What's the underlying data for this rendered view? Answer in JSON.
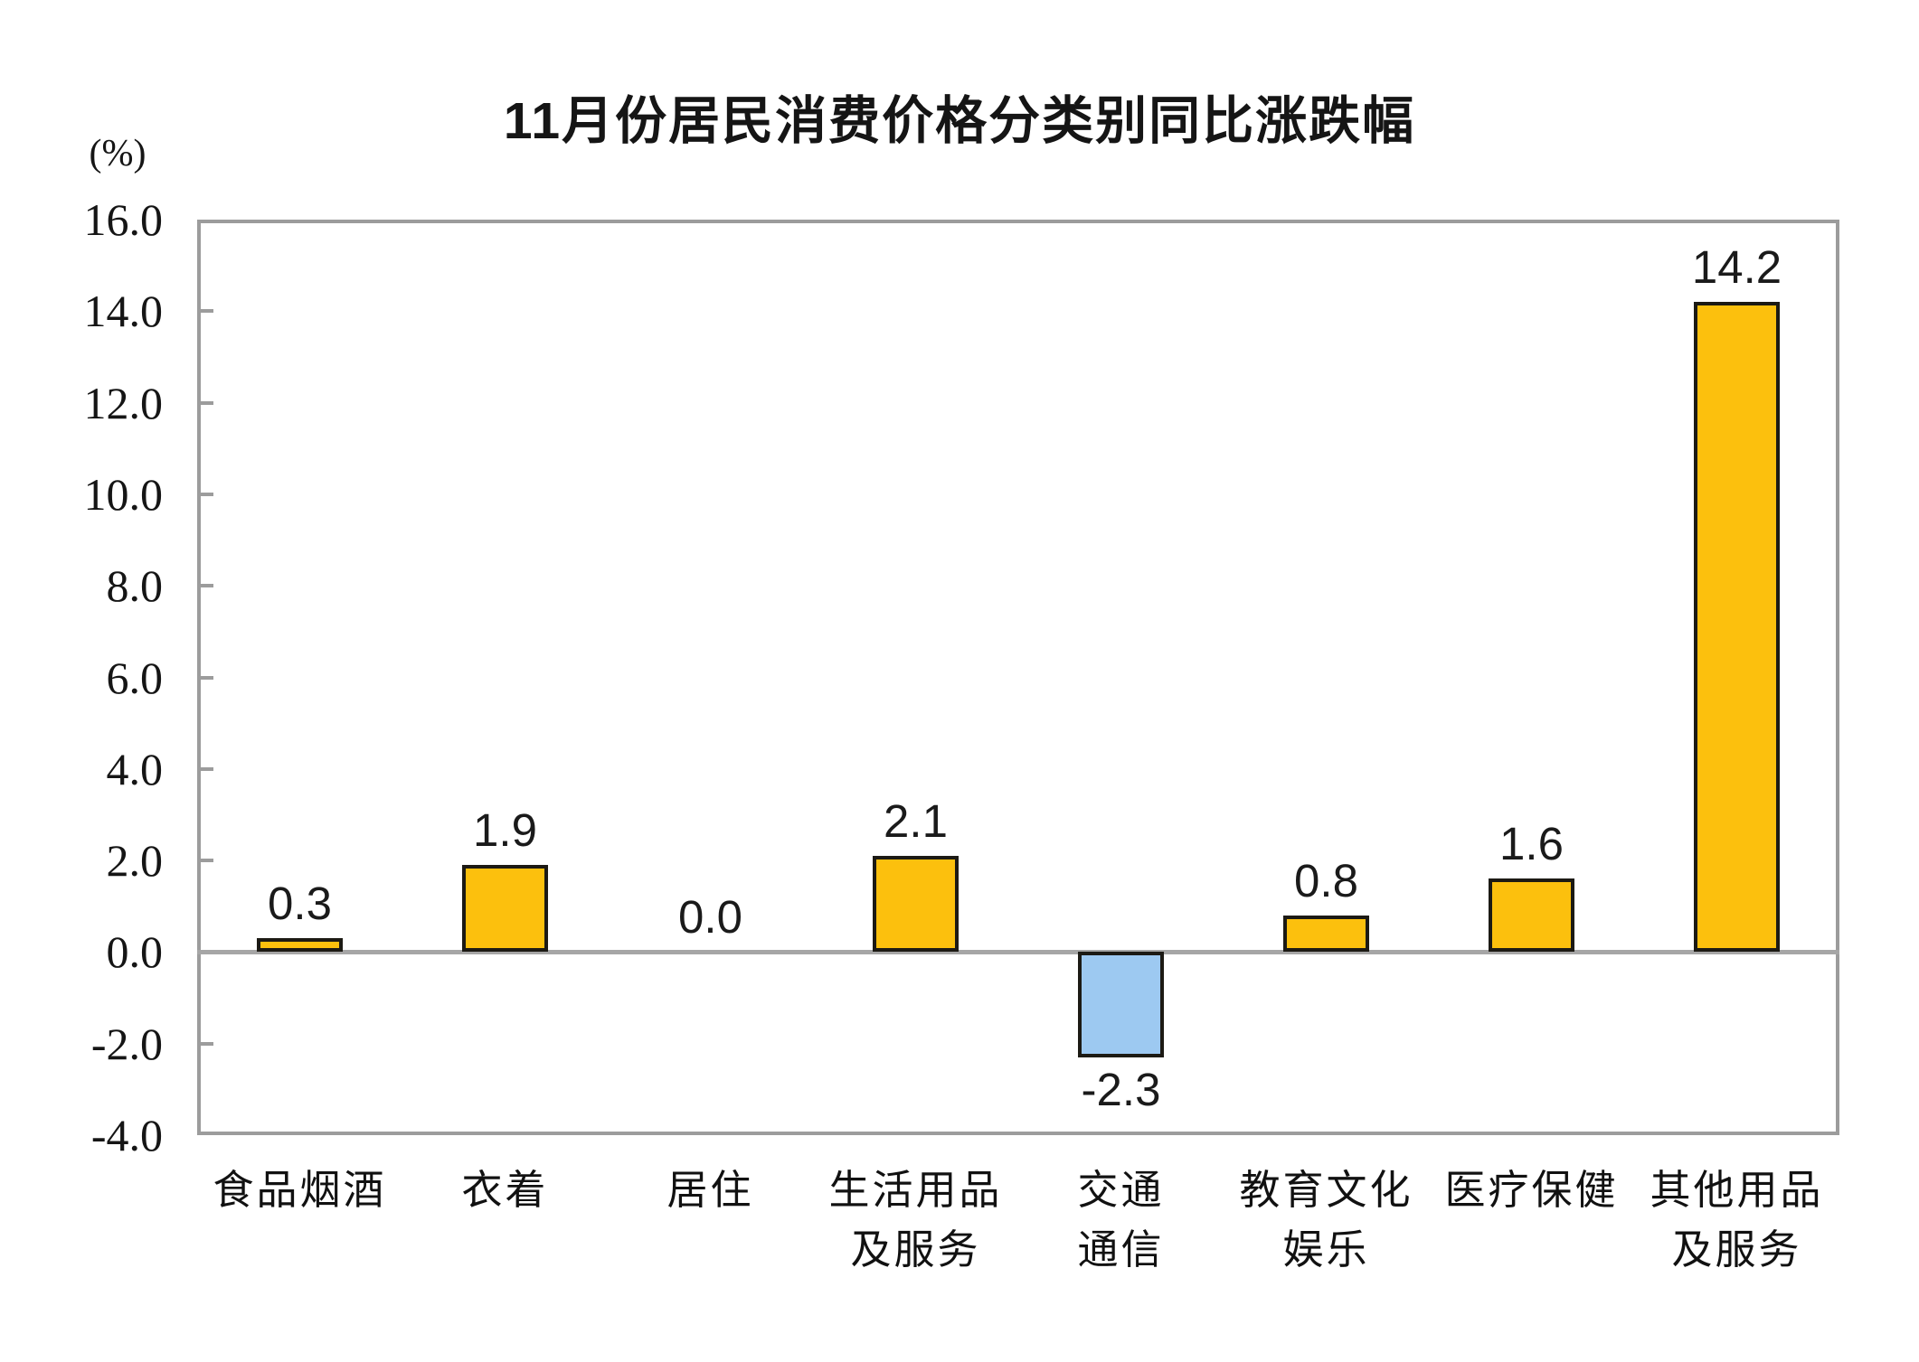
{
  "title": "11月份居民消费价格分类别同比涨跌幅",
  "axis_unit_label": "(%)",
  "colors": {
    "positive_bar": "#FCC00D",
    "negative_bar": "#9DC9F1",
    "bar_border": "#1c1a14",
    "axis_line": "#9c9c9c",
    "zero_line": "#a6a6a6",
    "text": "#151515"
  },
  "chart_data": {
    "type": "bar",
    "title": "11月份居民消费价格分类别同比涨跌幅",
    "categories": [
      "食品烟酒",
      "衣着",
      "居住",
      "生活用品及服务",
      "交通通信",
      "教育文化娱乐",
      "医疗保健",
      "其他用品及服务"
    ],
    "category_label_lines": [
      [
        "食品烟酒"
      ],
      [
        "衣着"
      ],
      [
        "居住"
      ],
      [
        "生活用品",
        "及服务"
      ],
      [
        "交通",
        "通信"
      ],
      [
        "教育文化",
        "娱乐"
      ],
      [
        "医疗保健"
      ],
      [
        "其他用品",
        "及服务"
      ]
    ],
    "values": [
      0.3,
      1.9,
      0.0,
      2.1,
      -2.3,
      0.8,
      1.6,
      14.2
    ],
    "value_labels": [
      "0.3",
      "1.9",
      "0.0",
      "2.1",
      "-2.3",
      "0.8",
      "1.6",
      "14.2"
    ],
    "xlabel": "",
    "ylabel": "(%)",
    "ylim": [
      -4.0,
      16.0
    ],
    "ytick_step": 2.0,
    "yticks": [
      "16.0",
      "14.0",
      "12.0",
      "10.0",
      "8.0",
      "6.0",
      "4.0",
      "2.0",
      "0.0",
      "-2.0",
      "-4.0"
    ],
    "grid": false,
    "legend": false
  }
}
